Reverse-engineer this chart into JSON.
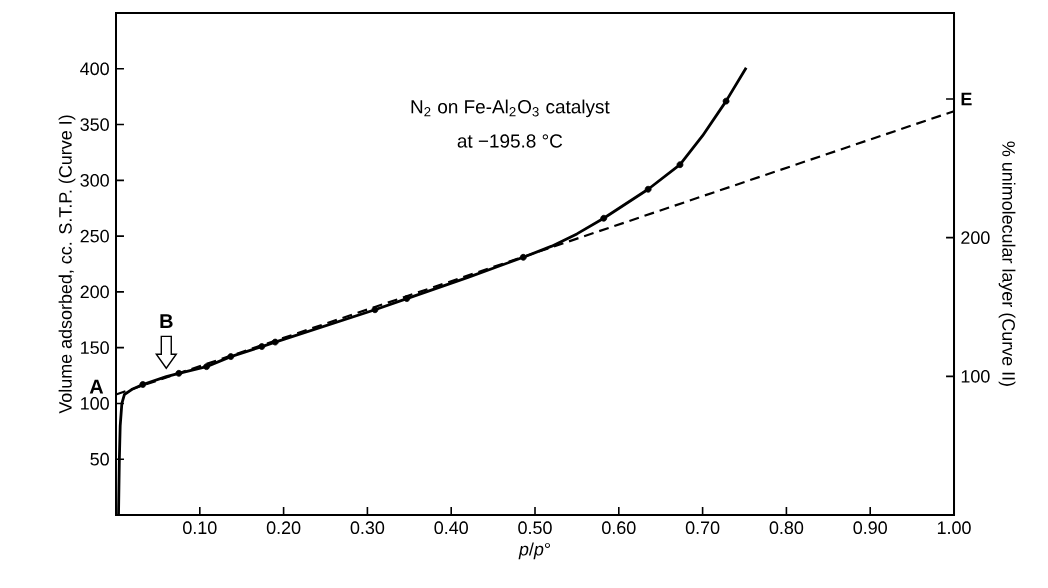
{
  "chart_data": {
    "type": "line",
    "xlabel": "*p*/*p*°",
    "ylabel": "Volume adsorbed, cc. S.T.P. (Curve I)",
    "y2label": "% unimolecular layer (Curve II)",
    "xlim": [
      0,
      1
    ],
    "ylim": [
      0,
      450
    ],
    "y2lim": [
      0,
      362
    ],
    "xticks": [
      {
        "value": 0.1,
        "label": "0.10"
      },
      {
        "value": 0.2,
        "label": "0.20"
      },
      {
        "value": 0.3,
        "label": "0.30"
      },
      {
        "value": 0.4,
        "label": "0.40"
      },
      {
        "value": 0.5,
        "label": "0.50"
      },
      {
        "value": 0.6,
        "label": "0.60"
      },
      {
        "value": 0.7,
        "label": "0.70"
      },
      {
        "value": 0.8,
        "label": "0.80"
      },
      {
        "value": 0.9,
        "label": "0.90"
      },
      {
        "value": 1.0,
        "label": "1.00"
      }
    ],
    "yticks": [
      50,
      100,
      150,
      200,
      250,
      300,
      350,
      400
    ],
    "y2ticks": [
      100,
      200,
      {
        "value": 300,
        "label": "E"
      }
    ],
    "annotations": [
      "N$_{2}$ on Fe-Al$_{2}$O$_{3}$ catalyst",
      "at −195.8 °C",
      {
        "text": "A",
        "x": 0,
        "y": 108
      },
      {
        "text": "B",
        "x": 0.06,
        "y": 128
      }
    ],
    "series": [
      {
        "color": "#000000",
        "marker": "none",
        "line_style": "solid",
        "x": [
          0.003,
          0.004,
          0.005,
          0.007,
          0.01,
          0.02,
          0.032,
          0.06,
          0.075,
          0.108,
          0.137,
          0.174,
          0.19,
          0.309,
          0.347,
          0.42,
          0.486,
          0.52,
          0.55,
          0.582,
          0.635,
          0.673,
          0.7,
          0.728,
          0.752
        ],
        "values": [
          0,
          50,
          80,
          100,
          108,
          113,
          117,
          124,
          127,
          133,
          142,
          151,
          155,
          184,
          194,
          213,
          231,
          241,
          252,
          266,
          292,
          314,
          340,
          371,
          401
        ]
      },
      {
        "type": "scatter",
        "color": "#000000",
        "marker": "circle",
        "x": [
          0.032,
          0.075,
          0.108,
          0.137,
          0.174,
          0.19,
          0.309,
          0.347,
          0.486,
          0.582,
          0.635,
          0.673,
          0.728
        ],
        "values": [
          117,
          127,
          133,
          142,
          151,
          155,
          184,
          194,
          231,
          266,
          292,
          314,
          371
        ]
      },
      {
        "color": "#000000",
        "marker": "none",
        "line_style": "dashed",
        "x": [
          0,
          1
        ],
        "values": [
          108,
          362
        ]
      }
    ]
  }
}
